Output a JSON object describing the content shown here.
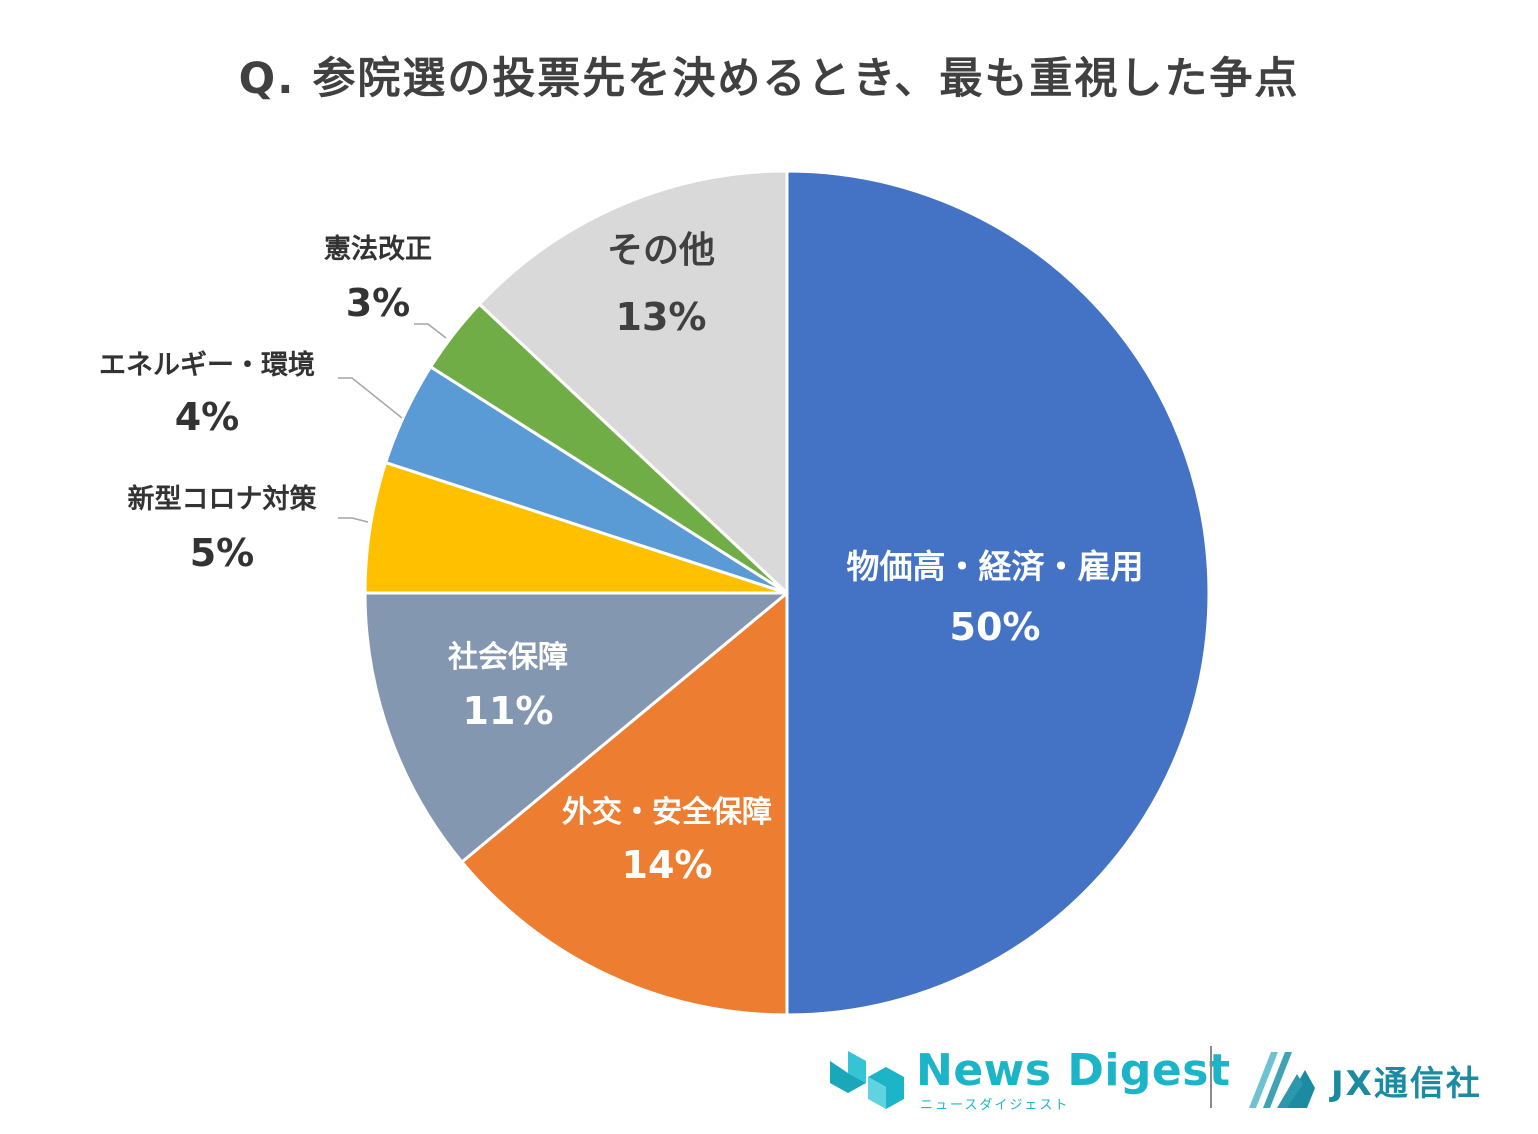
{
  "chart_data": {
    "type": "pie",
    "title": "Q. 参院選の投票先を決めるとき、最も重視した争点",
    "slices": [
      {
        "label": "物価高・経済・雇用",
        "value": 50,
        "value_label": "50%",
        "color": "#4472c4",
        "label_color": "#ffffff"
      },
      {
        "label": "外交・安全保障",
        "value": 14,
        "value_label": "14%",
        "color": "#ed7d31",
        "label_color": "#ffffff"
      },
      {
        "label": "社会保障",
        "value": 11,
        "value_label": "11%",
        "color": "#8497b0",
        "label_color": "#ffffff"
      },
      {
        "label": "新型コロナ対策",
        "value": 5,
        "value_label": "5%",
        "color": "#ffc000",
        "label_color": "#333333"
      },
      {
        "label": "エネルギー・環境",
        "value": 4,
        "value_label": "4%",
        "color": "#5b9bd5",
        "label_color": "#333333"
      },
      {
        "label": "憲法改正",
        "value": 3,
        "value_label": "3%",
        "color": "#70ad47",
        "label_color": "#333333"
      },
      {
        "label": "その他",
        "value": 13,
        "value_label": "13%",
        "color": "#d9d9d9",
        "label_color": "#404040"
      }
    ],
    "start": "12 o'clock",
    "direction": "clockwise",
    "legend": "none"
  },
  "footer": {
    "news_digest": {
      "name": "News Digest",
      "kana": "ニュースダイジェスト",
      "color": "#1cb5c8"
    },
    "jx": {
      "name": "JX通信社",
      "color": "#1a8ba0"
    }
  }
}
